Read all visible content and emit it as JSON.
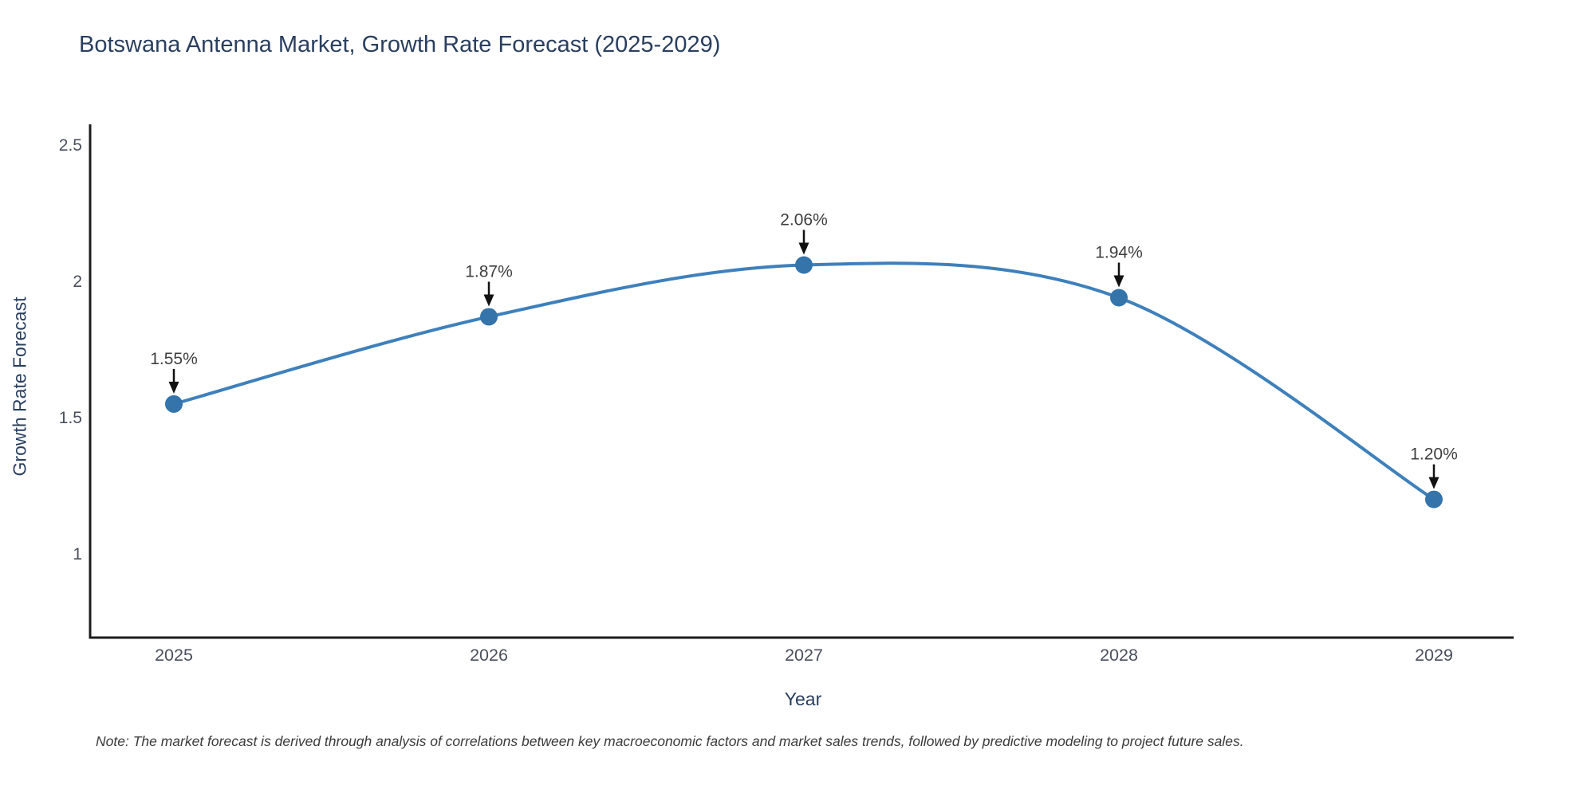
{
  "chart_data": {
    "type": "line",
    "title": "Botswana Antenna Market, Growth Rate Forecast (2025-2029)",
    "xlabel": "Year",
    "ylabel": "Growth Rate Forecast",
    "x": [
      2025,
      2026,
      2027,
      2028,
      2029
    ],
    "x_tick_labels": [
      "2025",
      "2026",
      "2027",
      "2028",
      "2029"
    ],
    "series": [
      {
        "name": "Growth Rate Forecast",
        "values": [
          1.55,
          1.87,
          2.06,
          1.94,
          1.2
        ]
      }
    ],
    "point_labels": [
      "1.55%",
      "1.87%",
      "2.06%",
      "1.94%",
      "1.20%"
    ],
    "y_ticks": [
      1,
      1.5,
      2,
      2.5
    ],
    "y_tick_labels": [
      "1",
      "1.5",
      "2",
      "2.5"
    ],
    "ylim": [
      0.69,
      2.57
    ],
    "grid": false,
    "legend": "none",
    "curve": "spline",
    "colors": {
      "line": "#3e80bc",
      "marker": "#3474ab",
      "axis": "#1c1c1c",
      "tick_label": "#4a4f5c",
      "annotation_text": "#3f3f3f",
      "annotation_arrow": "#111111",
      "title": "#2a3f5f"
    }
  },
  "note": {
    "text": "Note: The market forecast is derived through analysis of correlations between key macroeconomic factors and market sales trends, followed by predictive modeling to project future sales."
  }
}
